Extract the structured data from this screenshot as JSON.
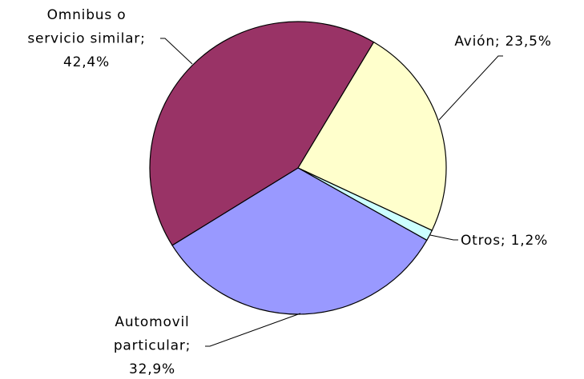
{
  "chart_data": {
    "type": "pie",
    "values": [
      23.5,
      1.2,
      32.9,
      42.4
    ],
    "value_labels": [
      [
        "Avión; 23,5%"
      ],
      [
        "Otros; 1,2%"
      ],
      [
        "Automovil",
        "particular;",
        "32,9%"
      ],
      [
        "Omnibus o",
        "servicio similar;",
        "42,4%"
      ]
    ],
    "colors": [
      "#FFFFCC",
      "#CCFFFF",
      "#9999FF",
      "#993366"
    ]
  }
}
